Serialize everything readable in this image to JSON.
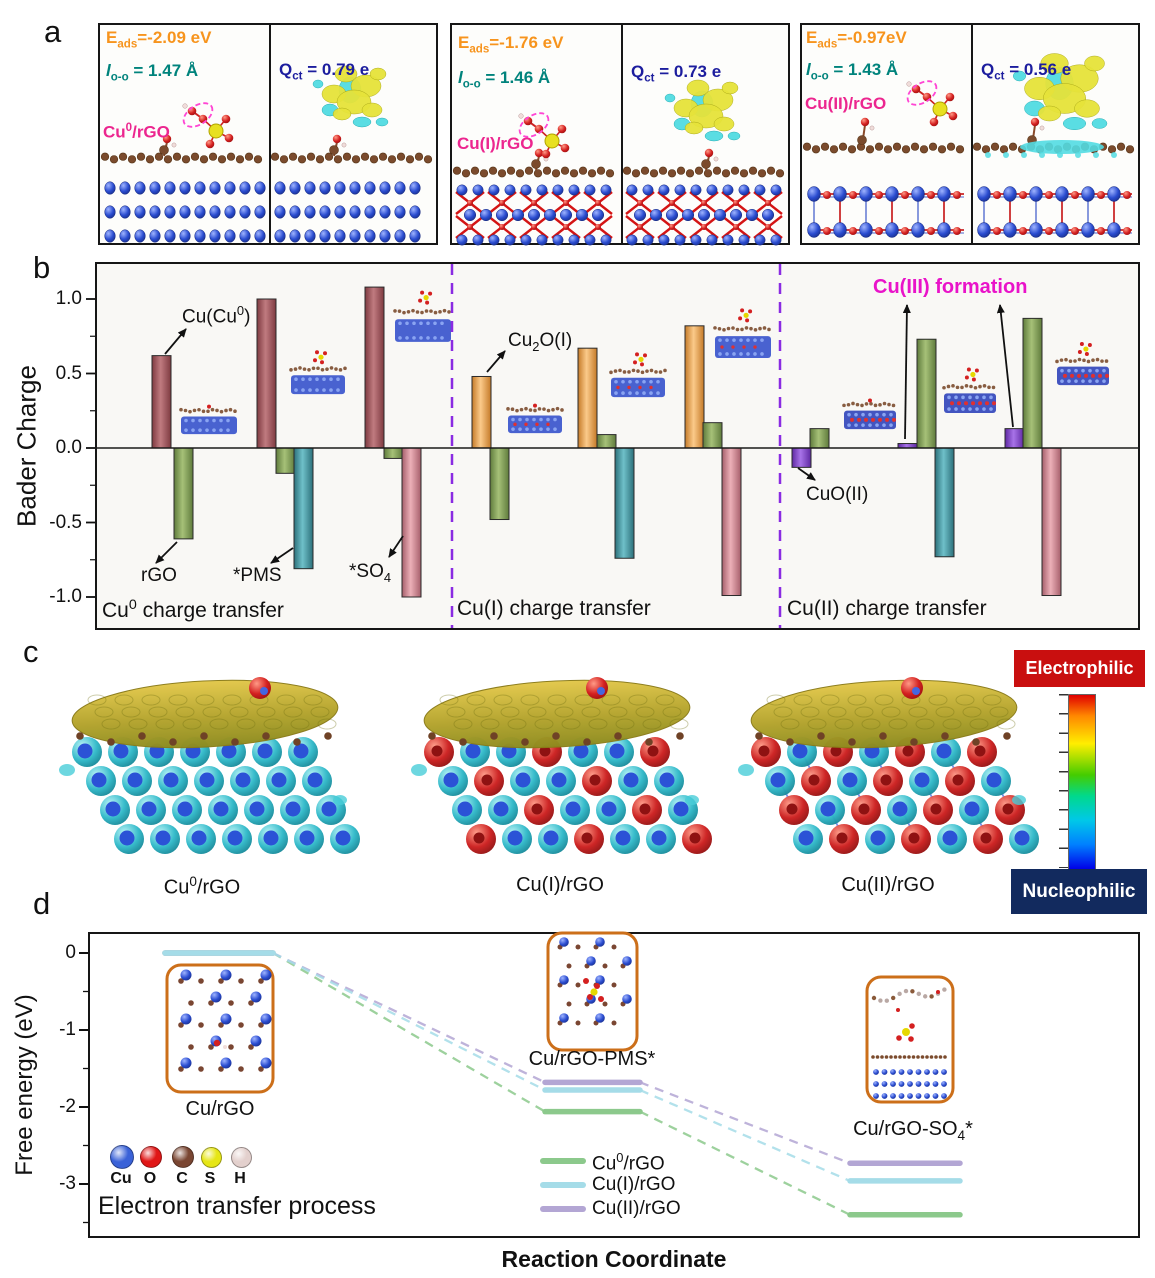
{
  "figure": {
    "panel_labels": {
      "a": "a",
      "b": "b",
      "c": "c",
      "d": "d"
    }
  },
  "panel_a": {
    "groups": [
      {
        "eads": {
          "pre": "E",
          "sub": "ads",
          "post": "=-2.09 eV"
        },
        "loo": {
          "pre": "l",
          "sub": "o-o",
          "post": " = 1.47 Å"
        },
        "species": {
          "pre": "Cu",
          "sup": "0",
          "post": "/rGO"
        },
        "qct": {
          "pre": "Q",
          "sub": "ct",
          "post": " = 0.79 e"
        }
      },
      {
        "eads": {
          "pre": "E",
          "sub": "ads",
          "post": "=-1.76 eV"
        },
        "loo": {
          "pre": "l",
          "sub": "o-o",
          "post": " = 1.46 Å"
        },
        "species": {
          "pre": "Cu(I)/rGO"
        },
        "qct": {
          "pre": "Q",
          "sub": "ct",
          "post": " = 0.73 e"
        }
      },
      {
        "eads": {
          "pre": "E",
          "sub": "ads",
          "post": "=-0.97eV"
        },
        "loo": {
          "pre": "l",
          "sub": "o-o",
          "post": " = 1.43 Å"
        },
        "species": {
          "pre": "Cu(II)/rGO"
        },
        "qct": {
          "pre": "Q",
          "sub": "ct",
          "post": " = 0.56 e"
        }
      }
    ]
  },
  "panel_b": {
    "ylabel": "Bader Charge",
    "annotations": {
      "cu_cu0": {
        "pre": "Cu(Cu",
        "sup": "0",
        "post": ")"
      },
      "rgo": {
        "pre": "rGO"
      },
      "pms": {
        "pre": "*PMS"
      },
      "so4": {
        "pre": "*SO",
        "sub": "4"
      },
      "cu2o": {
        "pre": "Cu",
        "sub": "2",
        "post": "O(I)"
      },
      "cuo": {
        "pre": "CuO(II)"
      },
      "cu3": {
        "pre": "Cu(III) formation"
      }
    },
    "section_labels": [
      {
        "pre": "Cu",
        "sup": "0",
        "post": " charge transfer"
      },
      {
        "pre": "Cu(I) charge transfer"
      },
      {
        "pre": "Cu(II) charge transfer"
      }
    ]
  },
  "panel_c": {
    "labels": [
      {
        "pre": "Cu",
        "sup": "0",
        "post": "/rGO"
      },
      {
        "pre": "Cu(I)/rGO"
      },
      {
        "pre": "Cu(II)/rGO"
      }
    ],
    "colorbar": {
      "top": "Electrophilic",
      "bottom": "Nucleophilic"
    }
  },
  "panel_d": {
    "ylabel": "Free energy (eV)",
    "xlabel": "Reaction Coordinate",
    "stage_labels": [
      {
        "pre": "Cu/rGO"
      },
      {
        "pre": "Cu/rGO-PMS*"
      },
      {
        "pre": "Cu/rGO-SO",
        "sub": "4",
        "post": "*"
      }
    ],
    "process_label": "Electron transfer process",
    "atoms": [
      {
        "sym": "Cu",
        "color": "#3a62d8",
        "size": 22
      },
      {
        "sym": "O",
        "color": "#e01616",
        "size": 20
      },
      {
        "sym": "C",
        "color": "#7a4632",
        "size": 20
      },
      {
        "sym": "S",
        "color": "#e6e616",
        "size": 19
      },
      {
        "sym": "H",
        "color": "#e3d0cd",
        "size": 19
      }
    ],
    "legend": [
      {
        "label": {
          "pre": "Cu",
          "sup": "0",
          "post": "/rGO"
        },
        "color_key": "green_line"
      },
      {
        "label": {
          "pre": "Cu(I)/rGO"
        },
        "color_key": "cyan_line"
      },
      {
        "label": {
          "pre": "Cu(II)/rGO"
        },
        "color_key": "purple_line"
      }
    ]
  },
  "chart_data": [
    {
      "type": "bar",
      "title": "Bader charge transfer for Cu0, Cu(I), Cu(II) on rGO with PMS/SO4",
      "ylabel": "Bader Charge",
      "ylim": [
        -1.22,
        1.25
      ],
      "yticks": [
        "1.0",
        "0.5",
        "0.0",
        "-0.5",
        "-1.0"
      ],
      "sections": [
        {
          "label": "Cu0 charge transfer",
          "groups": [
            [
              {
                "name": "Cu(Cu0)",
                "value": 0.62,
                "color": "maroon"
              },
              {
                "name": "rGO",
                "value": -0.61,
                "color": "green"
              }
            ],
            [
              {
                "name": "Cu(Cu0)",
                "value": 1.0,
                "color": "maroon"
              },
              {
                "name": "rGO",
                "value": -0.17,
                "color": "green"
              },
              {
                "name": "*PMS",
                "value": -0.81,
                "color": "teal"
              }
            ],
            [
              {
                "name": "Cu(Cu0)",
                "value": 1.08,
                "color": "maroon"
              },
              {
                "name": "rGO",
                "value": -0.07,
                "color": "green"
              },
              {
                "name": "*SO4",
                "value": -1.0,
                "color": "rose"
              }
            ]
          ]
        },
        {
          "label": "Cu(I) charge transfer",
          "groups": [
            [
              {
                "name": "Cu2O(I)",
                "value": 0.48,
                "color": "orange"
              },
              {
                "name": "rGO",
                "value": -0.48,
                "color": "green"
              }
            ],
            [
              {
                "name": "Cu2O(I)",
                "value": 0.67,
                "color": "orange"
              },
              {
                "name": "rGO",
                "value": 0.09,
                "color": "green"
              },
              {
                "name": "*PMS",
                "value": -0.74,
                "color": "teal"
              }
            ],
            [
              {
                "name": "Cu2O(I)",
                "value": 0.82,
                "color": "orange"
              },
              {
                "name": "rGO",
                "value": 0.17,
                "color": "green"
              },
              {
                "name": "*SO4",
                "value": -0.99,
                "color": "rose"
              }
            ]
          ]
        },
        {
          "label": "Cu(II) charge transfer",
          "groups": [
            [
              {
                "name": "CuO(II)",
                "value": -0.13,
                "color": "purple"
              },
              {
                "name": "rGO",
                "value": 0.13,
                "color": "green"
              }
            ],
            [
              {
                "name": "Cu(III)",
                "value": 0.03,
                "color": "purple"
              },
              {
                "name": "rGO",
                "value": 0.73,
                "color": "green"
              },
              {
                "name": "*PMS",
                "value": -0.73,
                "color": "teal"
              }
            ],
            [
              {
                "name": "Cu(III)",
                "value": 0.13,
                "color": "purple"
              },
              {
                "name": "rGO",
                "value": 0.87,
                "color": "green"
              },
              {
                "name": "*SO4",
                "value": -0.99,
                "color": "rose"
              }
            ]
          ]
        }
      ]
    },
    {
      "type": "line",
      "title": "Free energy diagram of electron transfer process",
      "xlabel": "Reaction Coordinate",
      "ylabel": "Free energy (eV)",
      "ylim": [
        -3.7,
        0.3
      ],
      "yticks": [
        "0",
        "-1",
        "-2",
        "-3"
      ],
      "stages": [
        "Cu/rGO",
        "Cu/rGO-PMS*",
        "Cu/rGO-SO4*"
      ],
      "series": [
        {
          "name": "Cu0/rGO",
          "color": "green",
          "values": [
            0,
            -2.06,
            -3.4
          ]
        },
        {
          "name": "Cu(I)/rGO",
          "color": "cyan",
          "values": [
            0,
            -1.78,
            -2.96
          ]
        },
        {
          "name": "Cu(II)/rGO",
          "color": "purple",
          "values": [
            0,
            -1.68,
            -2.73
          ]
        }
      ]
    }
  ],
  "colors": {
    "maroon": "#9e4a50",
    "green": "#7f9e56",
    "teal": "#3f929c",
    "rose": "#d2838e",
    "orange": "#f0a14f",
    "purple": "#8a3fd0",
    "divider": "#8a2be2",
    "annotation_magenta": "#e913c9",
    "green_line": "#8cc98c",
    "cyan_line": "#a5dce8",
    "purple_line": "#b3a6d4",
    "electrophilic_bg": "#c90f0f",
    "nucleophilic_bg": "#122a5e"
  }
}
